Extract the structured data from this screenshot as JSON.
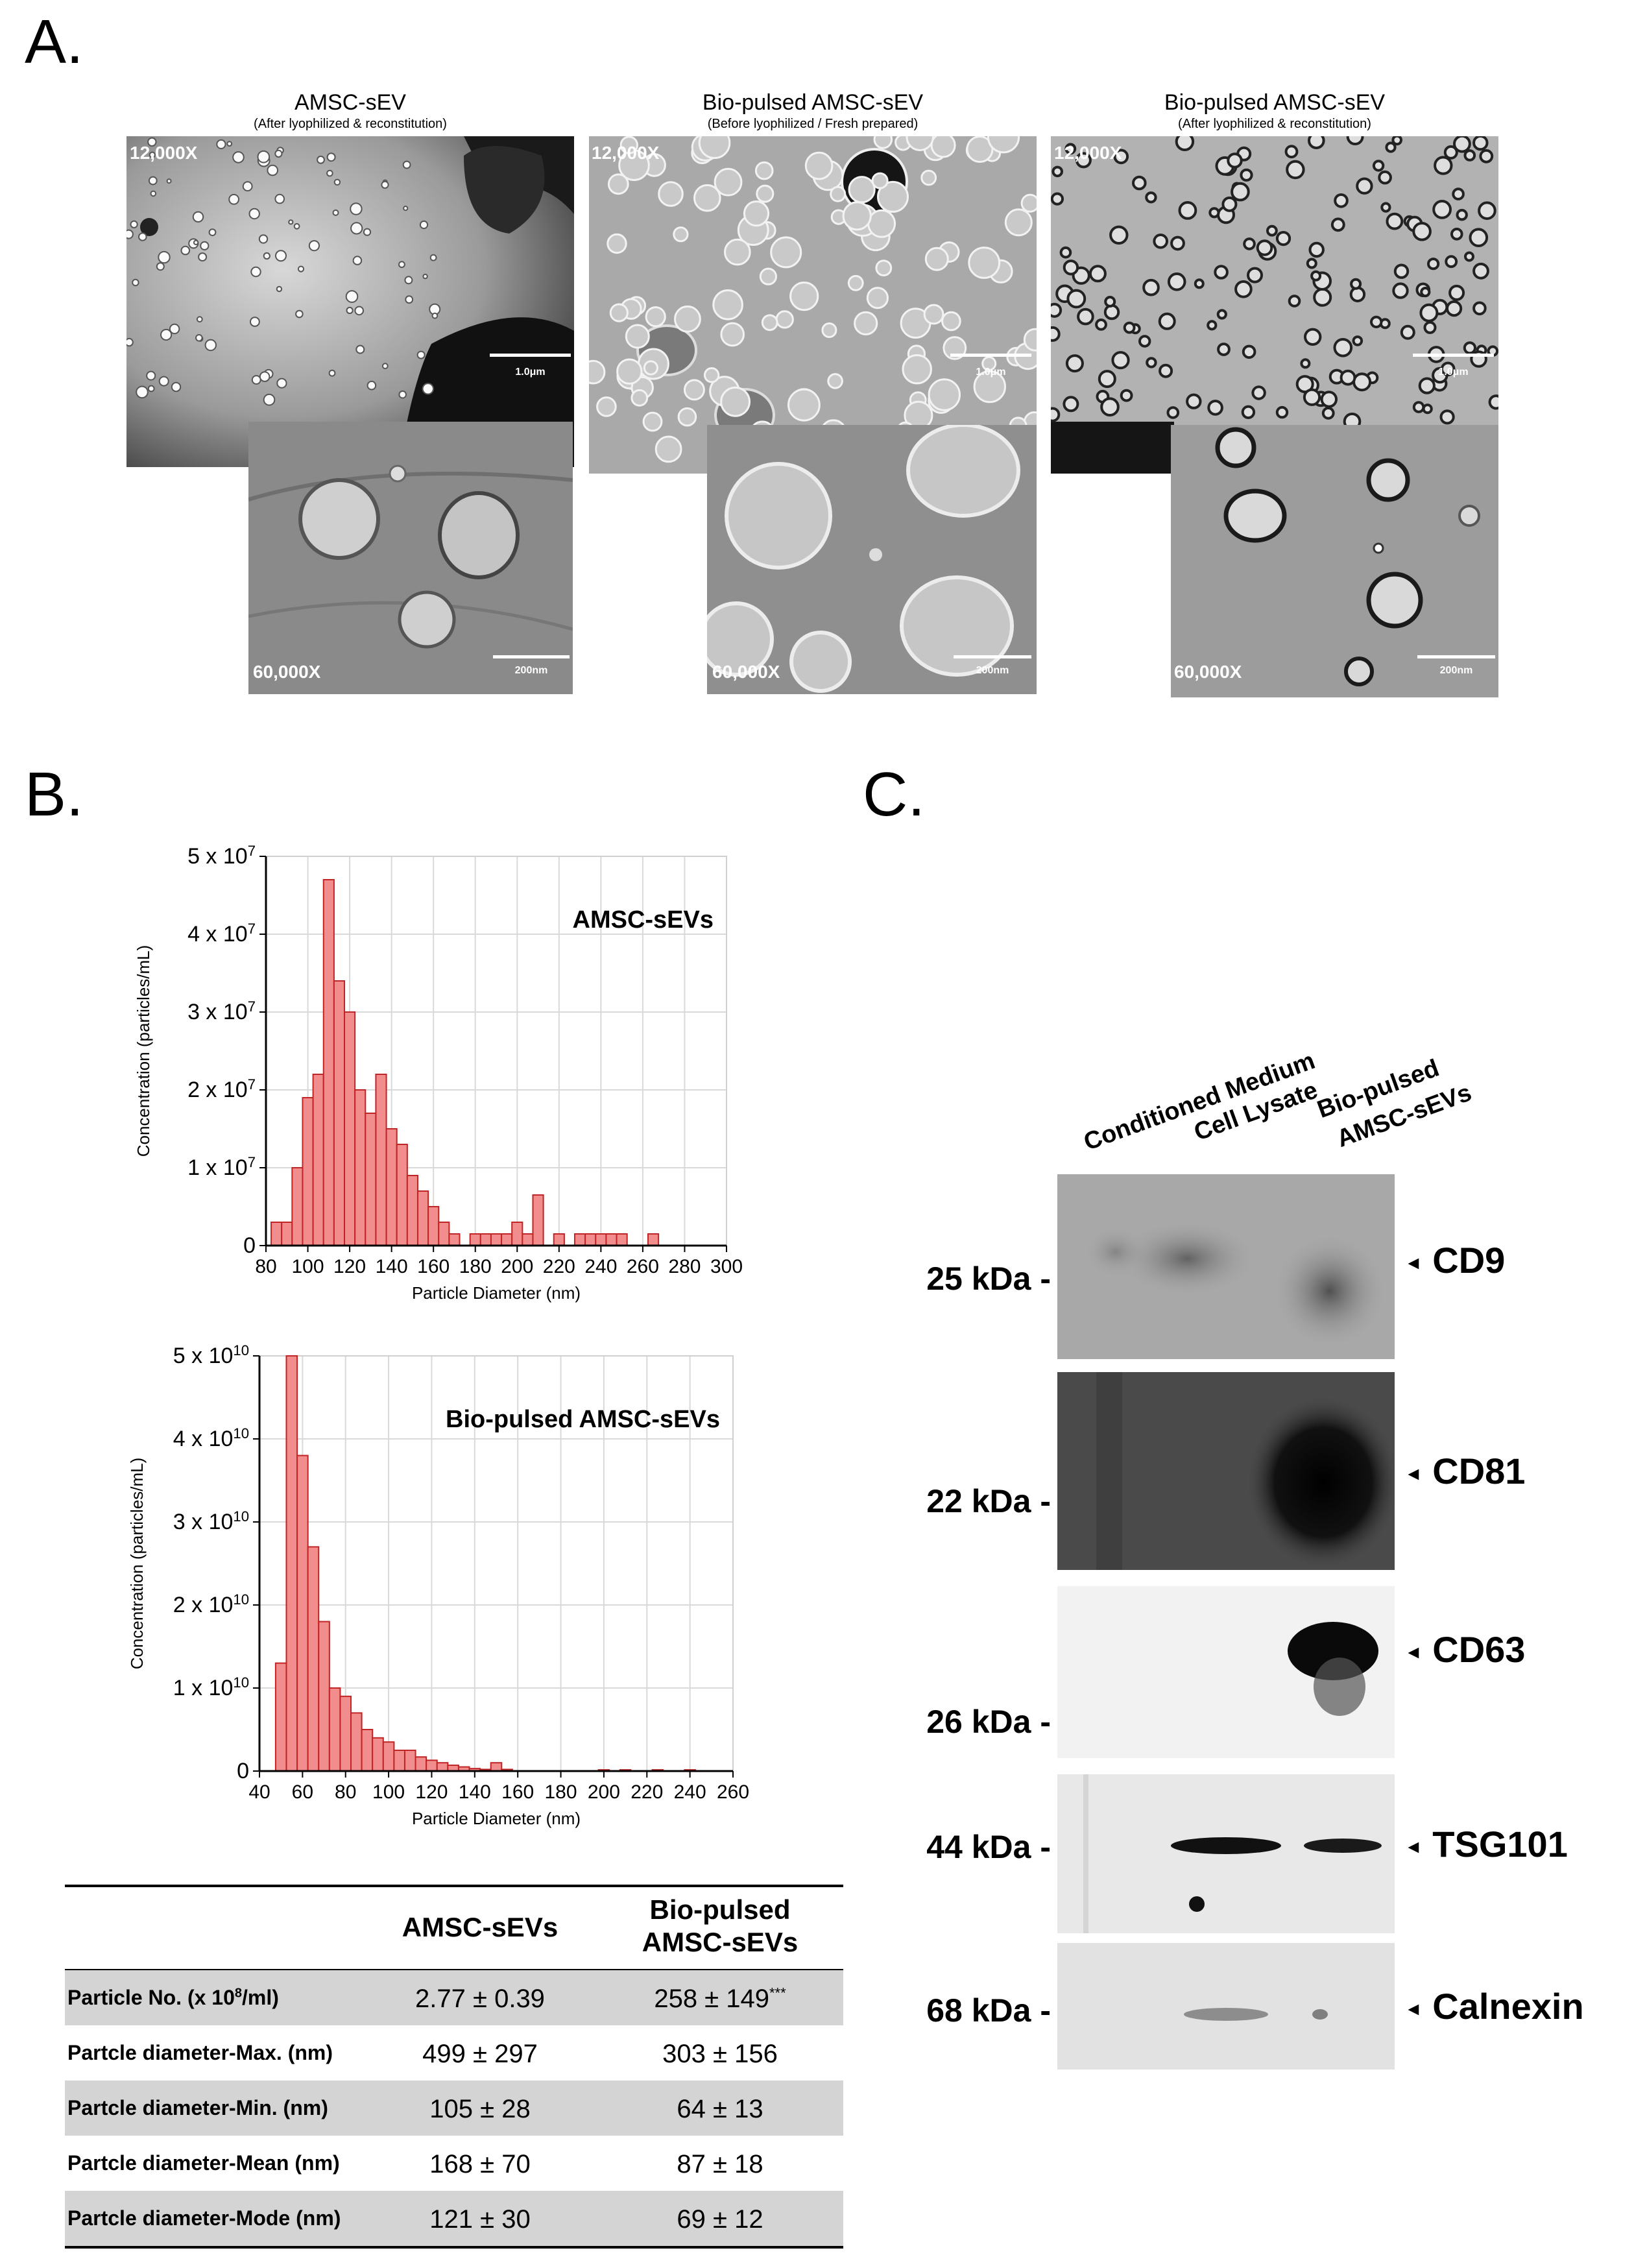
{
  "panels": {
    "a": "A.",
    "b": "B.",
    "c": "C."
  },
  "panel_a": {
    "images": [
      {
        "title": "AMSC-sEV",
        "subtitle": "(After lyophilized & reconstitution)",
        "mag_low": "12,000X",
        "scale_low": "1.0μm",
        "mag_high": "60,000X",
        "scale_high": "200nm"
      },
      {
        "title": "Bio-pulsed AMSC-sEV",
        "subtitle": "(Before lyophilized / Fresh prepared)",
        "mag_low": "12,000X",
        "scale_low": "1.0μm",
        "mag_high": "60,000X",
        "scale_high": "200nm"
      },
      {
        "title": "Bio-pulsed AMSC-sEV",
        "subtitle": "(After lyophilized & reconstitution)",
        "mag_low": "12,000X",
        "scale_low": "1.0μm",
        "mag_high": "60,000X",
        "scale_high": "200nm"
      }
    ]
  },
  "chart_data": [
    {
      "type": "bar",
      "title": "AMSC-sEVs",
      "xlabel": "Particle Diameter (nm)",
      "ylabel": "Concentration (particles/mL)",
      "xlim": [
        80,
        300
      ],
      "ylim": [
        0,
        50000000
      ],
      "xticks": [
        80,
        100,
        120,
        140,
        160,
        180,
        200,
        220,
        240,
        260,
        280,
        300
      ],
      "yticks": [
        "0",
        "1 x 10^7",
        "2 x 10^7",
        "3 x 10^7",
        "4 x 10^7",
        "5 x 10^7"
      ],
      "bin_width": 5,
      "x": [
        85,
        90,
        95,
        100,
        105,
        110,
        115,
        120,
        125,
        130,
        135,
        140,
        145,
        150,
        155,
        160,
        165,
        170,
        175,
        180,
        185,
        190,
        195,
        200,
        205,
        210,
        215,
        220,
        225,
        230,
        235,
        240,
        245,
        250,
        255,
        260,
        265,
        270,
        275,
        280
      ],
      "values": [
        3000000,
        3000000,
        10000000,
        19000000,
        22000000,
        47000000,
        34000000,
        30000000,
        20000000,
        17000000,
        22000000,
        15000000,
        13000000,
        9000000,
        7000000,
        5000000,
        3000000,
        1500000,
        0,
        1500000,
        1500000,
        1500000,
        1500000,
        3000000,
        1500000,
        6500000,
        0,
        1500000,
        0,
        1500000,
        1500000,
        1500000,
        1500000,
        1500000,
        0,
        0,
        1500000,
        0,
        0,
        0
      ]
    },
    {
      "type": "bar",
      "title": "Bio-pulsed AMSC-sEVs",
      "xlabel": "Particle Diameter (nm)",
      "ylabel": "Concentration (particles/mL)",
      "xlim": [
        40,
        260
      ],
      "ylim": [
        0,
        50000000000
      ],
      "xticks": [
        40,
        60,
        80,
        100,
        120,
        140,
        160,
        180,
        200,
        220,
        240,
        260
      ],
      "yticks": [
        "0",
        "1 x 10^10",
        "2 x 10^10",
        "3 x 10^10",
        "4 x 10^10",
        "5 x 10^10"
      ],
      "bin_width": 5,
      "x": [
        50,
        55,
        60,
        65,
        70,
        75,
        80,
        85,
        90,
        95,
        100,
        105,
        110,
        115,
        120,
        125,
        130,
        135,
        140,
        145,
        150,
        155,
        160,
        165,
        170,
        175,
        180,
        185,
        190,
        195,
        200,
        205,
        210,
        215,
        220,
        225,
        230,
        235,
        240,
        245
      ],
      "values": [
        13000000000,
        50000000000,
        38000000000,
        27000000000,
        18000000000,
        10000000000,
        9000000000,
        7000000000,
        5000000000,
        4000000000,
        3500000000,
        2500000000,
        2500000000,
        1700000000,
        1300000000,
        1000000000,
        700000000,
        500000000,
        300000000,
        200000000,
        1000000000,
        200000000,
        0,
        0,
        0,
        0,
        0,
        0,
        0,
        0,
        150000000,
        0,
        150000000,
        0,
        0,
        150000000,
        0,
        0,
        150000000,
        0
      ]
    },
    {
      "type": "table",
      "columns": [
        "",
        "AMSC-sEVs",
        "Bio-pulsed AMSC-sEVs"
      ],
      "rows": [
        [
          "Particle No. (x 10^8/ml)",
          "2.77 ± 0.39",
          "258 ± 149***"
        ],
        [
          "Partcle diameter-Max. (nm)",
          "499 ± 297",
          "303 ± 156"
        ],
        [
          "Partcle diameter-Min. (nm)",
          "105 ± 28",
          "64 ± 13"
        ],
        [
          "Partcle diameter-Mean (nm)",
          "168 ± 70",
          "87 ± 18"
        ],
        [
          "Partcle diameter-Mode (nm)",
          "121 ± 30",
          "69 ± 12"
        ]
      ]
    }
  ],
  "table": {
    "header": {
      "col1": "AMSC-sEVs",
      "col2_line1": "Bio-pulsed",
      "col2_line2": "AMSC-sEVs"
    },
    "rows": [
      {
        "label_pre": "Particle No. (x 10",
        "label_sup": "8",
        "label_post": "/ml)",
        "v1": "2.77 ± 0.39",
        "v2": "258 ± 149",
        "v2_sup": "***"
      },
      {
        "label_pre": "Partcle diameter-Max. (nm)",
        "label_sup": "",
        "label_post": "",
        "v1": "499 ± 297",
        "v2": "303 ± 156",
        "v2_sup": ""
      },
      {
        "label_pre": "Partcle diameter-Min. (nm)",
        "label_sup": "",
        "label_post": "",
        "v1": "105 ± 28",
        "v2": "64 ± 13",
        "v2_sup": ""
      },
      {
        "label_pre": "Partcle diameter-Mean (nm)",
        "label_sup": "",
        "label_post": "",
        "v1": "168 ± 70",
        "v2": "87 ± 18",
        "v2_sup": ""
      },
      {
        "label_pre": "Partcle diameter-Mode (nm)",
        "label_sup": "",
        "label_post": "",
        "v1": "121 ± 30",
        "v2": "69 ± 12",
        "v2_sup": ""
      }
    ]
  },
  "panel_c": {
    "lanes": [
      "Conditioned Medium",
      "Cell Lysate",
      "Bio-pulsed",
      "AMSC-sEVs"
    ],
    "blots": [
      {
        "marker": "CD9",
        "kda": "25 kDa -"
      },
      {
        "marker": "CD81",
        "kda": "22 kDa -"
      },
      {
        "marker": "CD63",
        "kda": "26 kDa -"
      },
      {
        "marker": "TSG101",
        "kda": "44 kDa -"
      },
      {
        "marker": "Calnexin",
        "kda": "68 kDa -"
      }
    ],
    "arrow": "◄"
  }
}
